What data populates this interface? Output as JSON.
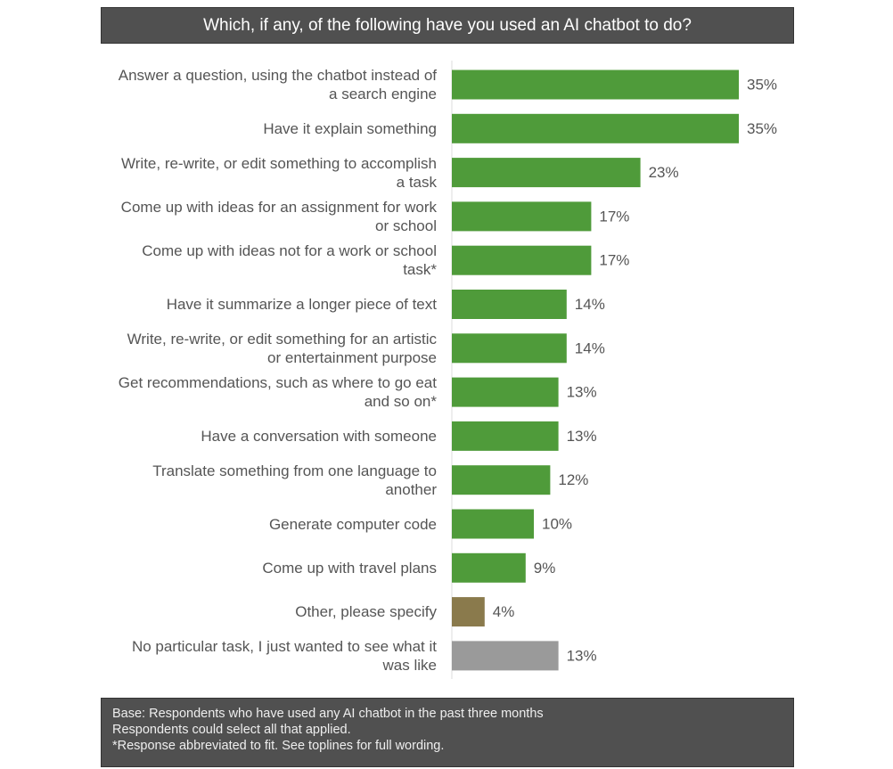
{
  "chart_data": {
    "type": "bar",
    "orientation": "horizontal",
    "title": "Which, if any, of the following have you used an AI chatbot to do?",
    "categories": [
      "Answer a question, using the chatbot instead of a search engine",
      "Have it explain something",
      "Write, re-write, or edit something to accomplish a task",
      "Come up with ideas for an assignment for work or school",
      "Come up with ideas not for a work or school task*",
      "Have it summarize a longer piece of text",
      "Write, re-write, or edit something for an artistic or entertainment purpose",
      "Get recommendations, such as where to go eat and so on*",
      "Have a conversation with someone",
      "Translate something from one language to another",
      "Generate computer code",
      "Come up with travel plans",
      "Other, please specify",
      "No particular task, I just wanted to see what it was like"
    ],
    "values": [
      35,
      35,
      23,
      17,
      17,
      14,
      14,
      13,
      13,
      12,
      10,
      9,
      4,
      13
    ],
    "value_labels": [
      "35%",
      "35%",
      "23%",
      "17%",
      "17%",
      "14%",
      "14%",
      "13%",
      "13%",
      "12%",
      "10%",
      "9%",
      "4%",
      "13%"
    ],
    "colors": [
      "#4f9b3a",
      "#4f9b3a",
      "#4f9b3a",
      "#4f9b3a",
      "#4f9b3a",
      "#4f9b3a",
      "#4f9b3a",
      "#4f9b3a",
      "#4f9b3a",
      "#4f9b3a",
      "#4f9b3a",
      "#4f9b3a",
      "#8a7a4c",
      "#9a9a9a"
    ],
    "notes": [
      "Base: Respondents who have used any AI chatbot in the past three months",
      "Respondents could select all that applied.",
      "*Response abbreviated to fit. See toplines for full wording."
    ]
  }
}
